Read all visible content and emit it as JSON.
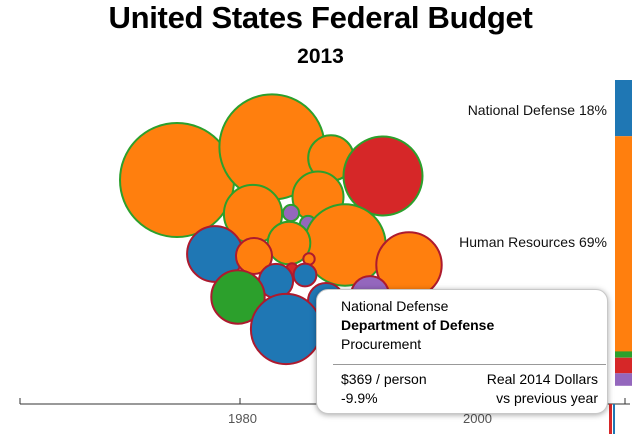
{
  "header": {
    "title": "United States Federal Budget",
    "subtitle": "2013"
  },
  "chart_data": {
    "type": "bubble",
    "year": "2013",
    "categories": [
      {
        "name": "National Defense",
        "percent": 18,
        "color": "#1f77b4",
        "label": "National Defense 18%"
      },
      {
        "name": "Human Resources",
        "percent": 69,
        "color": "#ff7f0e",
        "label": "Human Resources 69%"
      },
      {
        "name": "Green category (label hidden)",
        "percent": 2,
        "color": "#2ca02c",
        "label": ""
      },
      {
        "name": "Red category (label hidden)",
        "percent": 5,
        "color": "#d62728",
        "label": ""
      },
      {
        "name": "Purple category (label hidden)",
        "percent": 4,
        "color": "#9467bd",
        "label": ""
      }
    ],
    "partial_labels": [
      "%",
      "%"
    ],
    "bubbles": [
      {
        "color": "#ff7f0e",
        "stroke": "#2ca02c",
        "size": 100
      },
      {
        "color": "#ff7f0e",
        "stroke": "#2ca02c",
        "size": 85
      },
      {
        "color": "#ff7f0e",
        "stroke": "#2ca02c",
        "size": 16
      },
      {
        "color": "#d62728",
        "stroke": "#2ca02c",
        "size": 48
      },
      {
        "color": "#ff7f0e",
        "stroke": "#2ca02c",
        "size": 26
      },
      {
        "color": "#ff7f0e",
        "stroke": "#2ca02c",
        "size": 20
      },
      {
        "color": "#9467bd",
        "stroke": "#2ca02c",
        "size": 2
      },
      {
        "color": "#9467bd",
        "stroke": "#2ca02c",
        "size": 2
      },
      {
        "color": "#ff7f0e",
        "stroke": "#2ca02c",
        "size": 51
      },
      {
        "color": "#ff7f0e",
        "stroke": "#2ca02c",
        "size": 14
      },
      {
        "color": "#1f77b4",
        "stroke": "#ad1a2e",
        "size": 24
      },
      {
        "color": "#ff7f0e",
        "stroke": "#ad1a2e",
        "size": 10
      },
      {
        "color": "#ff7f0e",
        "stroke": "#ad1a2e",
        "size": 33
      },
      {
        "color": "#d62728",
        "stroke": "#ad1a2e",
        "size": 1
      },
      {
        "color": "#ff7f0e",
        "stroke": "#ad1a2e",
        "size": 1
      },
      {
        "color": "#1f77b4",
        "stroke": "#ad1a2e",
        "size": 4
      },
      {
        "color": "#1f77b4",
        "stroke": "#ad1a2e",
        "size": 9
      },
      {
        "color": "#2ca02c",
        "stroke": "#ad1a2e",
        "size": 22
      },
      {
        "color": "#1f77b4",
        "stroke": "#ad1a2e",
        "size": 10
      },
      {
        "color": "#1f77b4",
        "stroke": "#ad1a2e",
        "size": 38
      },
      {
        "color": "#9467bd",
        "stroke": "#ad1a2e",
        "size": 11
      }
    ],
    "x_axis": {
      "ticks": [
        {
          "label": "1980",
          "value": 1980
        },
        {
          "label": "2000",
          "value": 2000
        }
      ]
    },
    "tooltip": {
      "function": "National Defense",
      "department": "Department of Defense",
      "item": "Procurement",
      "per_person": "$369 / person",
      "units": "Real 2014 Dollars",
      "change": "-9.9%",
      "change_label": "vs previous year"
    }
  }
}
